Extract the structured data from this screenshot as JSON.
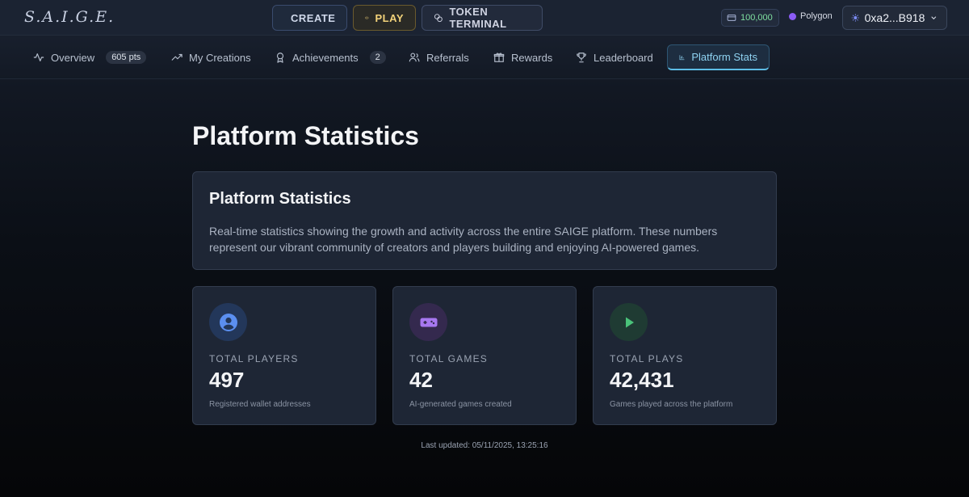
{
  "app": {
    "logo": "S.A.I.G.E."
  },
  "topbar": {
    "create_label": "CREATE",
    "play_label": "PLAY",
    "token_label": "TOKEN TERMINAL",
    "balance": "100,000",
    "network": "Polygon",
    "wallet": "0xa2...B918"
  },
  "tabs": {
    "overview": {
      "label": "Overview",
      "badge": "605 pts"
    },
    "creations": {
      "label": "My Creations"
    },
    "achievements": {
      "label": "Achievements",
      "badge": "2"
    },
    "referrals": {
      "label": "Referrals"
    },
    "rewards": {
      "label": "Rewards"
    },
    "leaderboard": {
      "label": "Leaderboard"
    },
    "stats": {
      "label": "Platform Stats"
    }
  },
  "main": {
    "title": "Platform Statistics",
    "intro_title": "Platform Statistics",
    "intro_text": "Real-time statistics showing the growth and activity across the entire SAIGE platform. These numbers represent our vibrant community of creators and players building and enjoying AI-powered games.",
    "stats": [
      {
        "label": "TOTAL PLAYERS",
        "value": "497",
        "desc": "Registered wallet addresses",
        "icon": "user-circle-icon"
      },
      {
        "label": "TOTAL GAMES",
        "value": "42",
        "desc": "AI-generated games created",
        "icon": "gamepad-icon"
      },
      {
        "label": "TOTAL PLAYS",
        "value": "42,431",
        "desc": "Games played across the platform",
        "icon": "play-icon"
      }
    ],
    "updated": "Last updated: 05/11/2025, 13:25:16"
  },
  "colors": {
    "accent": "#5dbde6",
    "play": "#f3d37a",
    "balance": "#7fe0a0"
  }
}
